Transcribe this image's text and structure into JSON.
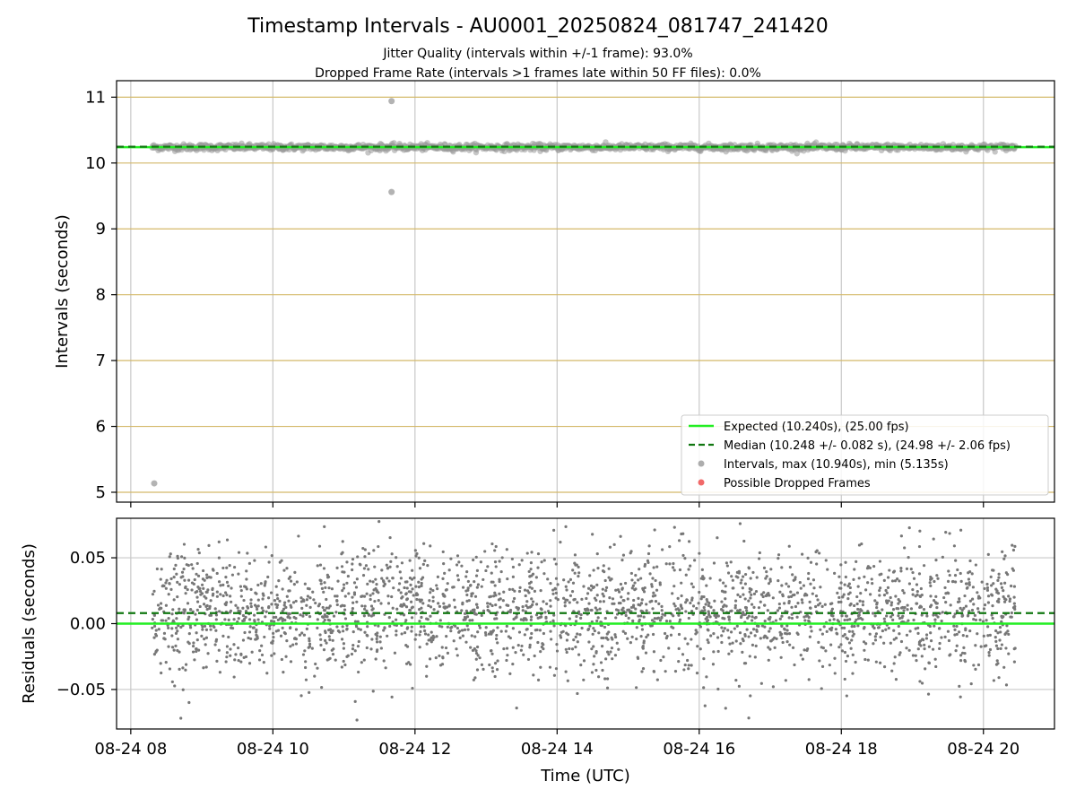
{
  "chart_data": [
    {
      "type": "scatter",
      "title": "Timestamp Intervals - AU0001_20250824_081747_241420",
      "subtitle_lines": [
        "Jitter Quality (intervals within +/-1 frame): 93.0%",
        "Dropped Frame Rate (intervals >1 frames late within 50 FF files): 0.0%"
      ],
      "ylabel": "Intervals (seconds)",
      "xlabel": "",
      "xlim": [
        7.8,
        21.0
      ],
      "ylim": [
        4.85,
        11.25
      ],
      "x_unit": "hours (UTC) on 08-24",
      "yticks": [
        5,
        6,
        7,
        8,
        9,
        10,
        11
      ],
      "ytick_labels": [
        "5",
        "6",
        "7",
        "8",
        "9",
        "10",
        "11"
      ],
      "grid": true,
      "expected": 10.24,
      "median": 10.248,
      "series": [
        {
          "name": "Intervals, max (10.940s), min (5.135s)",
          "color": "#999999",
          "band": {
            "x_start": 8.3,
            "x_end": 20.45,
            "center": 10.24,
            "spread": 0.04
          }
        },
        {
          "name": "Possible Dropped Frames",
          "color": "#ee4444",
          "points": []
        }
      ],
      "outliers": [
        {
          "x": 8.33,
          "y": 5.135
        },
        {
          "x": 11.67,
          "y": 10.94
        },
        {
          "x": 11.67,
          "y": 9.56
        }
      ],
      "legend": {
        "placement": "lower-right",
        "entries": [
          {
            "label": "Expected (10.240s), (25.00 fps)",
            "style": "line",
            "color": "#22ee22"
          },
          {
            "label": "Median (10.248 +/- 0.082 s), (24.98 +/- 2.06 fps)",
            "style": "dashed",
            "color": "#117711"
          },
          {
            "label": "Intervals, max (10.940s), min (5.135s)",
            "style": "dot",
            "color": "#999999"
          },
          {
            "label": "Possible Dropped Frames",
            "style": "dot",
            "color": "#ee4444"
          }
        ]
      }
    },
    {
      "type": "scatter",
      "ylabel": "Residuals (seconds)",
      "xlabel": "Time (UTC)",
      "xlim": [
        7.8,
        21.0
      ],
      "ylim": [
        -0.08,
        0.08
      ],
      "yticks": [
        -0.05,
        0.0,
        0.05
      ],
      "ytick_labels": [
        "−0.05",
        "0.00",
        "0.05"
      ],
      "xticks": [
        8,
        10,
        12,
        14,
        16,
        18,
        20
      ],
      "xtick_labels": [
        "08-24 08",
        "08-24 10",
        "08-24 12",
        "08-24 14",
        "08-24 16",
        "08-24 18",
        "08-24 20"
      ],
      "grid": true,
      "expected": 0.0,
      "median": 0.008,
      "series": [
        {
          "name": "Residuals",
          "color": "#777777",
          "band": {
            "x_start": 8.3,
            "x_end": 20.45,
            "center": 0.008,
            "spread": 0.07
          }
        }
      ]
    }
  ],
  "colors": {
    "expected": "#22ee22",
    "median": "#117711",
    "interval_points": "#999999",
    "residual_points": "#777777",
    "hgrid_top": "#d4b96a",
    "grid": "#c8c8c8"
  }
}
